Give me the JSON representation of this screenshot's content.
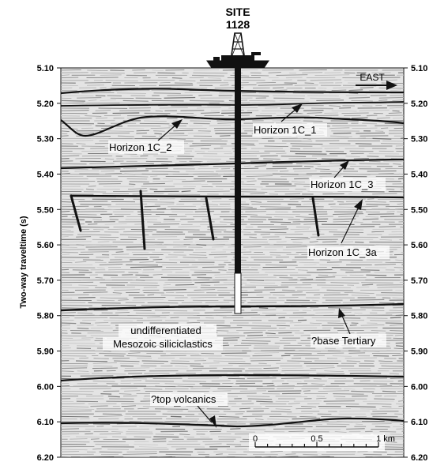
{
  "site": {
    "line1": "SITE",
    "line2": "1128"
  },
  "direction": "EAST",
  "y_axis": {
    "title": "Two-way traveltime (s)",
    "ticks": [
      "5.10",
      "5.20",
      "5.30",
      "5.40",
      "5.50",
      "5.60",
      "5.70",
      "5.80",
      "5.90",
      "6.00",
      "6.10",
      "6.20"
    ]
  },
  "labels": {
    "horizon_1c_1": "Horizon 1C_1",
    "horizon_1c_2": "Horizon 1C_2",
    "horizon_1c_3": "Horizon 1C_3",
    "horizon_1c_3a": "Horizon 1C_3a",
    "unit_line1": "undifferentiated",
    "unit_line2": "Mesozoic siliciclastics",
    "base_tertiary": "?base Tertiary",
    "top_volcanics": "?top volcanics"
  },
  "scale_bar": {
    "labels": [
      "0",
      "0.5",
      "1 km"
    ]
  },
  "colors": {
    "ink": "#111111",
    "seismic_background": "#e4e4e4",
    "reflector": "#bdbdbd"
  },
  "icons": [
    "drilling-ship-icon",
    "direction-arrow-icon"
  ]
}
